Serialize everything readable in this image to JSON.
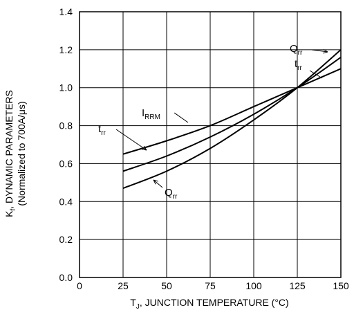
{
  "chart_data": {
    "type": "line",
    "xlabel": {
      "main": "T",
      "sub": "J",
      "rest": ", JUNCTION TEMPERATURE (°C)"
    },
    "ylabel": {
      "main": "K",
      "sub": "f",
      "rest": ", DYNAMIC PARAMETERS",
      "line2": "(Normalized to 700A/μs)"
    },
    "xlim": [
      0,
      150
    ],
    "ylim": [
      0,
      1.4
    ],
    "xticks": [
      "0",
      "25",
      "50",
      "75",
      "100",
      "125",
      "150"
    ],
    "yticks": [
      "0.0",
      "0.2",
      "0.4",
      "0.6",
      "0.8",
      "1.0",
      "1.2",
      "1.4"
    ],
    "grid": true,
    "series": [
      {
        "name": "IRRM",
        "label_main": "I",
        "label_sub": "RRM",
        "x": [
          25,
          50,
          75,
          100,
          125,
          150
        ],
        "y": [
          0.65,
          0.72,
          0.8,
          0.9,
          1.0,
          1.1
        ]
      },
      {
        "name": "trr",
        "label_main": "t",
        "label_sub": "rr",
        "x": [
          25,
          50,
          75,
          100,
          125,
          150
        ],
        "y": [
          0.56,
          0.64,
          0.74,
          0.86,
          1.0,
          1.16
        ]
      },
      {
        "name": "Qrr",
        "label_main": "Q",
        "label_sub": "rr",
        "x": [
          25,
          50,
          75,
          100,
          125,
          150
        ],
        "y": [
          0.47,
          0.56,
          0.68,
          0.83,
          1.0,
          1.2
        ]
      }
    ]
  }
}
